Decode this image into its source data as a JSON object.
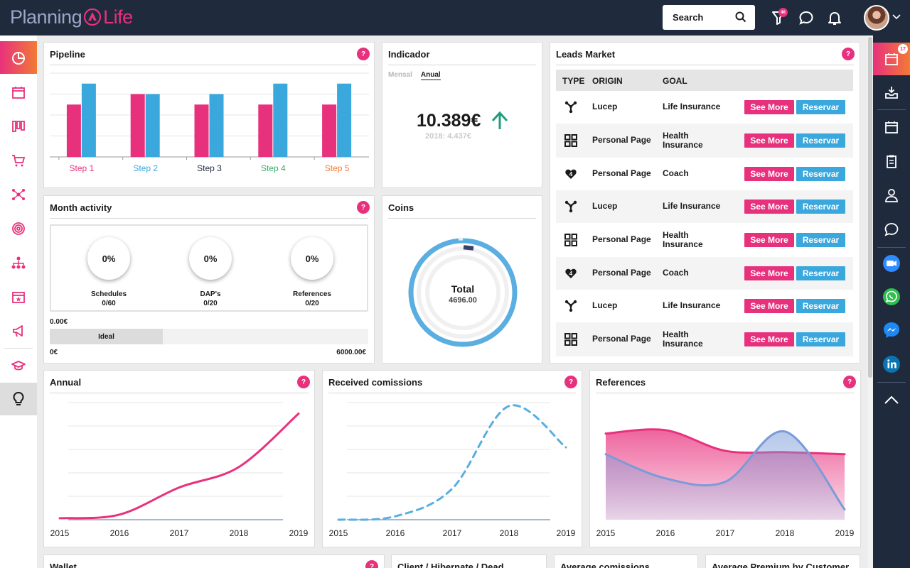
{
  "brand": {
    "left": "Planning",
    "right": "Life"
  },
  "search": {
    "label": "Search"
  },
  "notifications": {
    "filter_badge": "46"
  },
  "right_sidebar": {
    "calendar_badge": "17"
  },
  "cards": {
    "pipeline": {
      "title": "Pipeline",
      "help": "?"
    },
    "indicador": {
      "title": "Indicador",
      "tab_monthly": "Mensal",
      "tab_annual": "Anual",
      "value": "10.389€",
      "previous": "2018: 4.437€"
    },
    "leads": {
      "title": "Leads Market",
      "help": "?",
      "headers": {
        "type": "TYPE",
        "origin": "ORIGIN",
        "goal": "GOAL"
      },
      "see_more": "See More",
      "reserve": "Reservar",
      "rows": [
        {
          "icon": "network-icon",
          "origin": "Lucep",
          "goal": "Life Insurance"
        },
        {
          "icon": "grid-icon",
          "origin": "Personal Page",
          "goal": "Health Insurance"
        },
        {
          "icon": "heart-icon",
          "origin": "Personal Page",
          "goal": "Coach"
        },
        {
          "icon": "network-icon",
          "origin": "Lucep",
          "goal": "Life Insurance"
        },
        {
          "icon": "grid-icon",
          "origin": "Personal Page",
          "goal": "Health Insurance"
        },
        {
          "icon": "heart-icon",
          "origin": "Personal Page",
          "goal": "Coach"
        },
        {
          "icon": "network-icon",
          "origin": "Lucep",
          "goal": "Life Insurance"
        },
        {
          "icon": "grid-icon",
          "origin": "Personal Page",
          "goal": "Health Insurance"
        }
      ]
    },
    "month_activity": {
      "title": "Month activity",
      "help": "?",
      "items": [
        {
          "pct": "0%",
          "label": "Schedules",
          "count": "0/60"
        },
        {
          "pct": "0%",
          "label": "DAP's",
          "count": "0/20"
        },
        {
          "pct": "0%",
          "label": "References",
          "count": "0/20"
        }
      ],
      "current": "0.00€",
      "ideal": "Ideal",
      "min": "0€",
      "max": "6000.00€"
    },
    "coins": {
      "title": "Coins",
      "total_label": "Total",
      "total_value": "4696.00"
    },
    "annual": {
      "title": "Annual",
      "help": "?"
    },
    "commissions": {
      "title": "Received comissions",
      "help": "?"
    },
    "references": {
      "title": "References",
      "help": "?"
    },
    "wallet": {
      "title": "Wallet",
      "help": "?"
    },
    "client_status": {
      "title": "Client / Hibernate / Dead"
    },
    "avg_commissions": {
      "title": "Average comissions"
    },
    "avg_premium": {
      "title": "Average Premium by Customer"
    }
  },
  "chart_data": [
    {
      "type": "bar",
      "categories": [
        "Step 1",
        "Step 2",
        "Step 3",
        "Step 4",
        "Step 5"
      ],
      "category_colors": [
        "#e8317d",
        "#3aa7dd",
        "#1f2a3c",
        "#3daa6b",
        "#f27a36"
      ],
      "series": [
        {
          "color": "#e8317d",
          "values": [
            50,
            60,
            50,
            50,
            50
          ]
        },
        {
          "color": "#3aa7dd",
          "values": [
            70,
            60,
            60,
            70,
            70
          ]
        }
      ],
      "ylim": [
        0,
        80
      ]
    },
    {
      "type": "pie",
      "title": "Coins",
      "values": [
        4696.0
      ],
      "colors": [
        "#5aaee0",
        "#3b3f6b"
      ]
    },
    {
      "type": "line",
      "title": "Annual",
      "x": [
        "2015",
        "2016",
        "2017",
        "2018",
        "2019"
      ],
      "series": [
        {
          "color": "#e8317d",
          "values": [
            2,
            7,
            44,
            72,
            145
          ]
        }
      ],
      "ylim": [
        0,
        160
      ]
    },
    {
      "type": "line",
      "title": "Received comissions",
      "x": [
        "2015",
        "2016",
        "2017",
        "2018",
        "2019"
      ],
      "series": [
        {
          "color": "#5aaee0",
          "dashed": true,
          "values": [
            0,
            5,
            45,
            165,
            105
          ]
        }
      ],
      "ylim": [
        0,
        170
      ]
    },
    {
      "type": "area",
      "title": "References",
      "x": [
        "2015",
        "2016",
        "2017",
        "2018",
        "2019"
      ],
      "series": [
        {
          "color": "#e8317d",
          "values": [
            125,
            130,
            100,
            98,
            95
          ]
        },
        {
          "color": "#7b9bd8",
          "values": [
            95,
            60,
            55,
            128,
            15
          ]
        }
      ],
      "ylim": [
        0,
        170
      ]
    }
  ]
}
